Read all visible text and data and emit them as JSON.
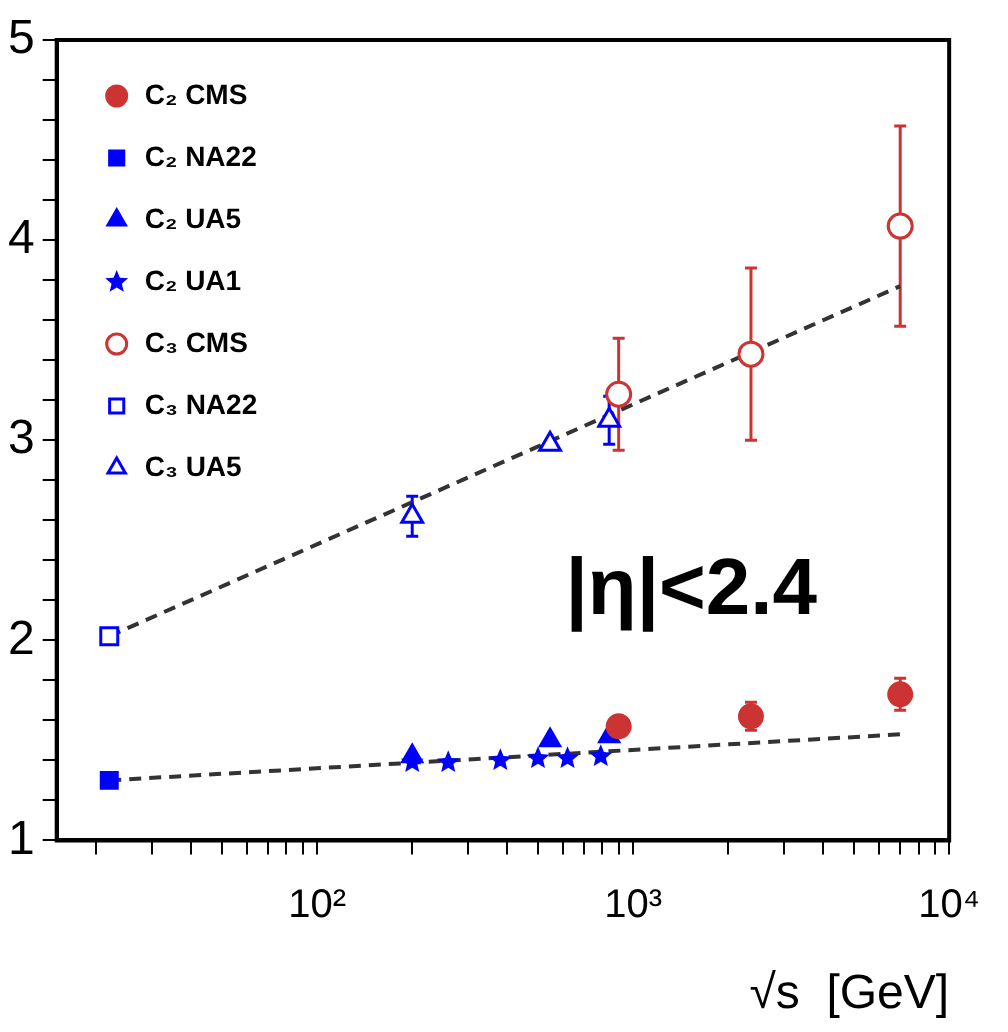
{
  "chart_data": {
    "type": "scatter",
    "xlabel": "√s  [GeV]",
    "log": "x",
    "xlim": [
      15,
      10000
    ],
    "ylim": [
      1,
      5
    ],
    "xticks": [
      {
        "value": 20,
        "label": null
      },
      {
        "value": 30,
        "label": null
      },
      {
        "value": 40,
        "label": null
      },
      {
        "value": 50,
        "label": null
      },
      {
        "value": 60,
        "label": null
      },
      {
        "value": 70,
        "label": null
      },
      {
        "value": 80,
        "label": null
      },
      {
        "value": 90,
        "label": null
      },
      {
        "value": 100,
        "label": "10²"
      },
      {
        "value": 200,
        "label": null
      },
      {
        "value": 300,
        "label": null
      },
      {
        "value": 400,
        "label": null
      },
      {
        "value": 500,
        "label": null
      },
      {
        "value": 600,
        "label": null
      },
      {
        "value": 700,
        "label": null
      },
      {
        "value": 800,
        "label": null
      },
      {
        "value": 900,
        "label": null
      },
      {
        "value": 1000,
        "label": "10³"
      },
      {
        "value": 2000,
        "label": null
      },
      {
        "value": 3000,
        "label": null
      },
      {
        "value": 4000,
        "label": null
      },
      {
        "value": 5000,
        "label": null
      },
      {
        "value": 6000,
        "label": null
      },
      {
        "value": 7000,
        "label": null
      },
      {
        "value": 8000,
        "label": null
      },
      {
        "value": 9000,
        "label": null
      },
      {
        "value": 10000,
        "label": "10⁴"
      }
    ],
    "yticks": [
      1,
      {
        "value": 1.2,
        "label": null
      },
      {
        "value": 1.4,
        "label": null
      },
      {
        "value": 1.6,
        "label": null
      },
      {
        "value": 1.8,
        "label": null
      },
      2,
      {
        "value": 2.2,
        "label": null
      },
      {
        "value": 2.4,
        "label": null
      },
      {
        "value": 2.6,
        "label": null
      },
      {
        "value": 2.8,
        "label": null
      },
      3,
      {
        "value": 3.2,
        "label": null
      },
      {
        "value": 3.4,
        "label": null
      },
      {
        "value": 3.6,
        "label": null
      },
      {
        "value": 3.8,
        "label": null
      },
      4,
      {
        "value": 4.2,
        "label": null
      },
      {
        "value": 4.4,
        "label": null
      },
      {
        "value": 4.6,
        "label": null
      },
      {
        "value": 4.8,
        "label": null
      },
      5
    ],
    "grid": false,
    "legend": "top left",
    "annotations": [
      "|η|<2.4"
    ],
    "series": [
      {
        "name": "C₂ CMS",
        "color": "#cc3333",
        "marker": "circle",
        "x": [
          900,
          2360,
          7000
        ],
        "values": [
          1.57,
          1.62,
          1.73
        ],
        "errors": [
          null,
          0.07,
          0.08
        ]
      },
      {
        "name": "C₂ NA22",
        "color": "#0000ff",
        "marker": "square",
        "x": [
          22
        ],
        "values": [
          1.3
        ]
      },
      {
        "name": "C₂ UA5",
        "color": "#0000ff",
        "marker": "triangle",
        "x": [
          200,
          546,
          840
        ],
        "values": [
          1.42,
          1.5,
          1.52
        ]
      },
      {
        "name": "C₂ UA1",
        "color": "#0000ff",
        "marker": "star",
        "x": [
          200,
          260,
          380,
          500,
          620,
          790
        ],
        "values": [
          1.39,
          1.39,
          1.4,
          1.41,
          1.41,
          1.42
        ]
      },
      {
        "name": "C₃ CMS",
        "color": "#cc3333",
        "marker": "circle",
        "x": [
          900,
          2360,
          7000
        ],
        "values": [
          3.23,
          3.43,
          4.07
        ],
        "errors": [
          0.28,
          0.43,
          0.5
        ]
      },
      {
        "name": "C₃ NA22",
        "color": "#0000ff",
        "marker": "square",
        "x": [
          22
        ],
        "values": [
          2.02
        ]
      },
      {
        "name": "C₃ UA5",
        "color": "#0000ff",
        "marker": "triangle",
        "x": [
          200,
          546,
          840
        ],
        "values": [
          2.62,
          2.98,
          3.1
        ],
        "errors": [
          0.1,
          null,
          0.12
        ]
      },
      {
        "type": "line",
        "color": "#333333",
        "marker": "none",
        "line_style": "dashed",
        "x": [
          22,
          7000
        ],
        "values": [
          2.02,
          3.77
        ]
      },
      {
        "type": "line",
        "color": "#333333",
        "marker": "none",
        "line_style": "dashed",
        "x": [
          22,
          7000
        ],
        "values": [
          1.3,
          1.53
        ]
      }
    ]
  }
}
